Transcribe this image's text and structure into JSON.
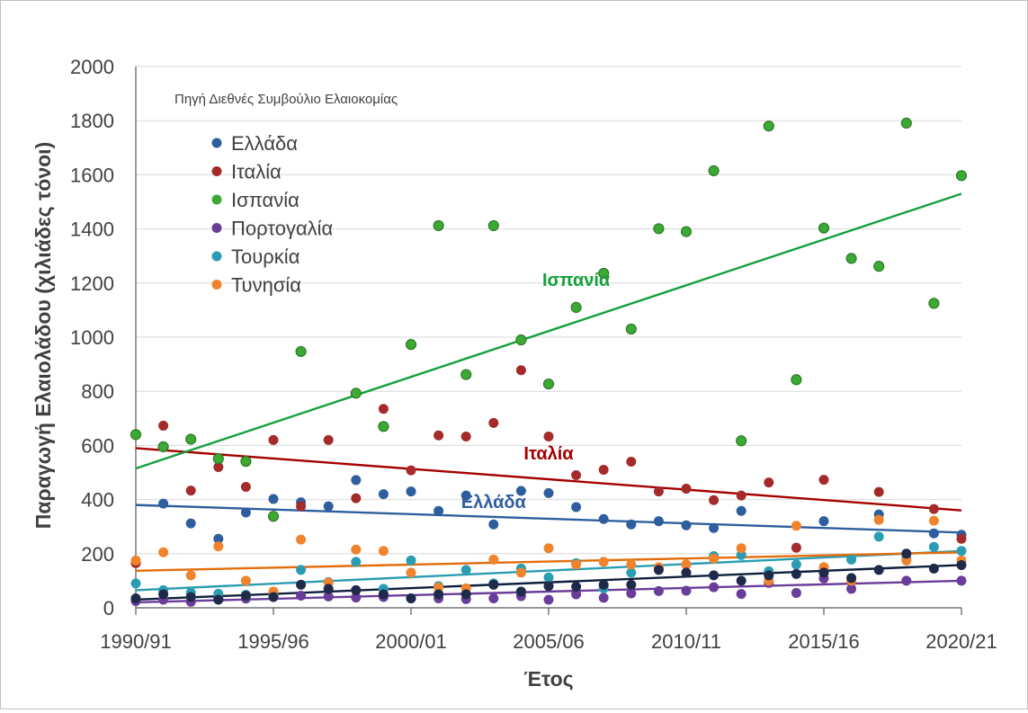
{
  "chart_data": {
    "type": "scatter",
    "ylabel": "Παραγωγή Ελαιολάδου (χιλιάδες τόνοι)",
    "xlabel": "Έτος",
    "source_note": "Πηγή Διεθνές Συμβούλιο Ελαιοκομίας",
    "ylim": [
      0,
      2000
    ],
    "yticks": [
      0,
      200,
      400,
      600,
      800,
      1000,
      1200,
      1400,
      1600,
      1800,
      2000
    ],
    "xlim": [
      0,
      30
    ],
    "xtick_labels": [
      "1990/91",
      "1995/96",
      "2000/01",
      "2005/06",
      "2010/11",
      "2015/16",
      "2020/21"
    ],
    "grid": "horizontal",
    "legend_position": "top-left",
    "series": [
      {
        "name": "Ελλάδα",
        "color": "#2e5e9e",
        "values": [
          null,
          385,
          312,
          255,
          352,
          402,
          390,
          375,
          472,
          420,
          430,
          358,
          415,
          308,
          432,
          424,
          372,
          328,
          308,
          320,
          305,
          295,
          358,
          null,
          null,
          320,
          null,
          345,
          null,
          275,
          270
        ],
        "trend": {
          "start": 380,
          "end": 278,
          "color": "#2e5e9e",
          "label": "Ελλάδα"
        }
      },
      {
        "name": "Ιταλία",
        "color": "#a52a2a",
        "values": [
          165,
          673,
          433,
          520,
          447,
          620,
          375,
          620,
          405,
          735,
          508,
          637,
          633,
          683,
          878,
          633,
          490,
          510,
          540,
          430,
          440,
          398,
          415,
          463,
          222,
          473,
          null,
          428,
          null,
          365,
          255
        ],
        "trend": {
          "start": 590,
          "end": 360,
          "color": "#a50000",
          "label": "Ιταλία"
        }
      },
      {
        "name": "Ισπανία",
        "color": "#3aaa35",
        "values": [
          640,
          595,
          623,
          551,
          541,
          338,
          947,
          null,
          793,
          670,
          973,
          1412,
          862,
          1412,
          990,
          827,
          1110,
          1236,
          1030,
          1401,
          1390,
          1615,
          617,
          1780,
          843,
          1403,
          1291,
          1262,
          1791,
          1125,
          1597
        ],
        "trend": {
          "start": 515,
          "end": 1530,
          "color": "#14a03c",
          "label": "Ισπανία"
        }
      },
      {
        "name": "Πορτογαλία",
        "color": "#6a3d9a",
        "values": [
          25,
          30,
          22,
          33,
          34,
          43,
          45,
          42,
          38,
          40,
          35,
          35,
          32,
          35,
          43,
          30,
          50,
          37,
          53,
          62,
          63,
          76,
          51,
          92,
          55,
          109,
          70,
          null,
          100,
          null,
          100
        ],
        "trend": {
          "start": 20,
          "end": 100,
          "color": "#6a3d9a"
        }
      },
      {
        "name": "Τουρκία",
        "color": "#2a9db2",
        "values": [
          90,
          65,
          56,
          52,
          48,
          46,
          140,
          95,
          170,
          70,
          175,
          80,
          140,
          90,
          145,
          112,
          165,
          72,
          130,
          147,
          160,
          191,
          195,
          135,
          160,
          150,
          178,
          263,
          183,
          225,
          210
        ],
        "trend": {
          "start": 65,
          "end": 210,
          "color": "#2a9db2"
        }
      },
      {
        "name": "Τυνησία",
        "color": "#f0832c",
        "values": [
          175,
          205,
          120,
          227,
          100,
          60,
          252,
          93,
          215,
          210,
          130,
          75,
          72,
          178,
          130,
          220,
          160,
          170,
          160,
          150,
          160,
          182,
          220,
          100,
          303,
          150,
          100,
          325,
          175,
          322,
          175
        ],
        "trend": {
          "start": 137,
          "end": 205,
          "color": "#e46c0a"
        }
      },
      {
        "color": "#1f2a4a",
        "values": [
          35,
          50,
          40,
          30,
          45,
          40,
          85,
          70,
          65,
          50,
          35,
          50,
          50,
          85,
          60,
          80,
          78,
          85,
          85,
          140,
          130,
          120,
          100,
          120,
          125,
          130,
          110,
          140,
          200,
          145,
          158
        ],
        "trend": {
          "start": 30,
          "end": 158,
          "color": "#0e1f3d"
        }
      }
    ]
  },
  "icons": {
    "legend_marker": "circle-marker"
  }
}
